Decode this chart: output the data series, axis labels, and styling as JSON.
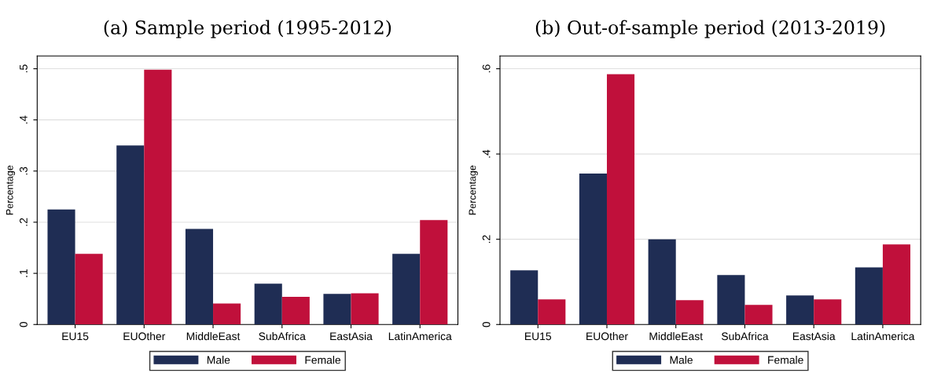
{
  "chart_data": [
    {
      "type": "bar",
      "title": "(a) Sample period (1995-2012)",
      "ylabel": "Percentage",
      "categories": [
        "EU15",
        "EUOther",
        "MiddleEast",
        "SubAfrica",
        "EastAsia",
        "LatinAmerica"
      ],
      "series": [
        {
          "name": "Male",
          "color": "#1f2d54",
          "values": [
            0.225,
            0.35,
            0.187,
            0.08,
            0.06,
            0.138
          ]
        },
        {
          "name": "Female",
          "color": "#c0103b",
          "values": [
            0.138,
            0.498,
            0.041,
            0.054,
            0.061,
            0.204
          ]
        }
      ],
      "ylim": [
        0,
        0.525
      ],
      "yticks": [
        0,
        {
          "value": 0.1,
          "label": ".1"
        },
        {
          "value": 0.2,
          "label": ".2"
        },
        {
          "value": 0.3,
          "label": ".3"
        },
        {
          "value": 0.4,
          "label": ".4"
        },
        {
          "value": 0.5,
          "label": ".5"
        }
      ],
      "grid": "y",
      "legend": "bottom"
    },
    {
      "type": "bar",
      "title": "(b) Out-of-sample period (2013-2019)",
      "ylabel": "Percentage",
      "categories": [
        "EU15",
        "EUOther",
        "MiddleEast",
        "SubAfrica",
        "EastAsia",
        "LatinAmerica"
      ],
      "series": [
        {
          "name": "Male",
          "color": "#1f2d54",
          "values": [
            0.127,
            0.354,
            0.2,
            0.116,
            0.068,
            0.134
          ]
        },
        {
          "name": "Female",
          "color": "#c0103b",
          "values": [
            0.059,
            0.587,
            0.057,
            0.046,
            0.059,
            0.188
          ]
        }
      ],
      "ylim": [
        0,
        0.63
      ],
      "yticks": [
        0,
        {
          "value": 0.2,
          "label": ".2"
        },
        {
          "value": 0.4,
          "label": ".4"
        },
        {
          "value": 0.6,
          "label": ".6"
        }
      ],
      "grid": "y",
      "legend": "bottom"
    }
  ]
}
